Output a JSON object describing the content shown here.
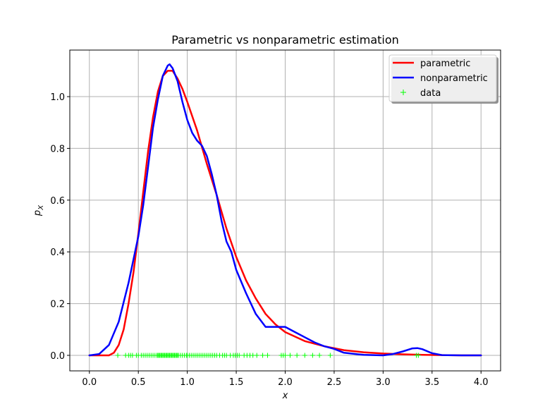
{
  "chart_data": {
    "type": "line",
    "title": "Parametric vs nonparametric estimation",
    "xlabel": "x",
    "ylabel": "p_X",
    "xlim": [
      -0.2,
      4.2
    ],
    "ylim": [
      -0.06,
      1.18
    ],
    "xticks": [
      0.0,
      0.5,
      1.0,
      1.5,
      2.0,
      2.5,
      3.0,
      3.5,
      4.0
    ],
    "xtick_labels": [
      "0.0",
      "0.5",
      "1.0",
      "1.5",
      "2.0",
      "2.5",
      "3.0",
      "3.5",
      "4.0"
    ],
    "yticks": [
      0.0,
      0.2,
      0.4,
      0.6,
      0.8,
      1.0
    ],
    "ytick_labels": [
      "0.0",
      "0.2",
      "0.4",
      "0.6",
      "0.8",
      "1.0"
    ],
    "grid": true,
    "legend_position": "top-right",
    "series": [
      {
        "name": "parametric",
        "color": "#ff0000",
        "style": "line",
        "x": [
          0.0,
          0.2,
          0.25,
          0.3,
          0.35,
          0.4,
          0.45,
          0.5,
          0.55,
          0.6,
          0.65,
          0.7,
          0.75,
          0.8,
          0.85,
          0.9,
          0.95,
          1.0,
          1.1,
          1.2,
          1.3,
          1.4,
          1.5,
          1.6,
          1.7,
          1.8,
          1.9,
          2.0,
          2.2,
          2.4,
          2.6,
          2.8,
          3.0,
          3.2,
          3.4,
          3.6,
          3.8,
          4.0
        ],
        "y": [
          0.0,
          0.0,
          0.01,
          0.04,
          0.1,
          0.2,
          0.32,
          0.47,
          0.63,
          0.79,
          0.92,
          1.02,
          1.08,
          1.1,
          1.1,
          1.07,
          1.03,
          0.98,
          0.87,
          0.74,
          0.62,
          0.49,
          0.38,
          0.29,
          0.22,
          0.16,
          0.12,
          0.09,
          0.055,
          0.035,
          0.02,
          0.012,
          0.007,
          0.004,
          0.002,
          0.001,
          0.0,
          0.0
        ]
      },
      {
        "name": "nonparametric",
        "color": "#0000ff",
        "style": "line",
        "x": [
          0.0,
          0.1,
          0.2,
          0.3,
          0.4,
          0.5,
          0.55,
          0.6,
          0.65,
          0.7,
          0.75,
          0.8,
          0.82,
          0.85,
          0.9,
          0.95,
          1.0,
          1.05,
          1.1,
          1.15,
          1.2,
          1.25,
          1.3,
          1.35,
          1.4,
          1.45,
          1.5,
          1.6,
          1.7,
          1.8,
          1.9,
          2.0,
          2.1,
          2.2,
          2.3,
          2.4,
          2.5,
          2.6,
          2.8,
          3.0,
          3.1,
          3.2,
          3.3,
          3.35,
          3.4,
          3.5,
          3.6,
          3.8,
          4.0
        ],
        "y": [
          0.0,
          0.005,
          0.04,
          0.13,
          0.28,
          0.46,
          0.58,
          0.73,
          0.88,
          0.99,
          1.08,
          1.12,
          1.125,
          1.11,
          1.06,
          0.98,
          0.91,
          0.86,
          0.83,
          0.81,
          0.77,
          0.7,
          0.62,
          0.52,
          0.44,
          0.4,
          0.33,
          0.24,
          0.16,
          0.11,
          0.11,
          0.11,
          0.09,
          0.07,
          0.05,
          0.035,
          0.025,
          0.01,
          0.002,
          0.0,
          0.005,
          0.015,
          0.027,
          0.028,
          0.024,
          0.008,
          0.001,
          0.0,
          0.0
        ]
      },
      {
        "name": "data",
        "color": "#00ff00",
        "style": "marker",
        "marker": "+",
        "x": [
          0.29,
          0.37,
          0.4,
          0.42,
          0.44,
          0.48,
          0.5,
          0.53,
          0.55,
          0.57,
          0.59,
          0.61,
          0.63,
          0.65,
          0.67,
          0.69,
          0.7,
          0.71,
          0.72,
          0.73,
          0.74,
          0.75,
          0.76,
          0.77,
          0.78,
          0.79,
          0.8,
          0.81,
          0.82,
          0.83,
          0.84,
          0.85,
          0.86,
          0.87,
          0.88,
          0.89,
          0.9,
          0.91,
          0.93,
          0.95,
          0.97,
          0.99,
          1.0,
          1.02,
          1.04,
          1.06,
          1.08,
          1.1,
          1.12,
          1.14,
          1.16,
          1.18,
          1.2,
          1.22,
          1.24,
          1.26,
          1.28,
          1.3,
          1.33,
          1.36,
          1.38,
          1.4,
          1.44,
          1.47,
          1.49,
          1.51,
          1.53,
          1.58,
          1.61,
          1.64,
          1.67,
          1.71,
          1.77,
          1.82,
          1.96,
          1.98,
          2.0,
          2.05,
          2.12,
          2.2,
          2.28,
          2.35,
          2.46,
          3.34,
          3.36
        ]
      }
    ]
  }
}
